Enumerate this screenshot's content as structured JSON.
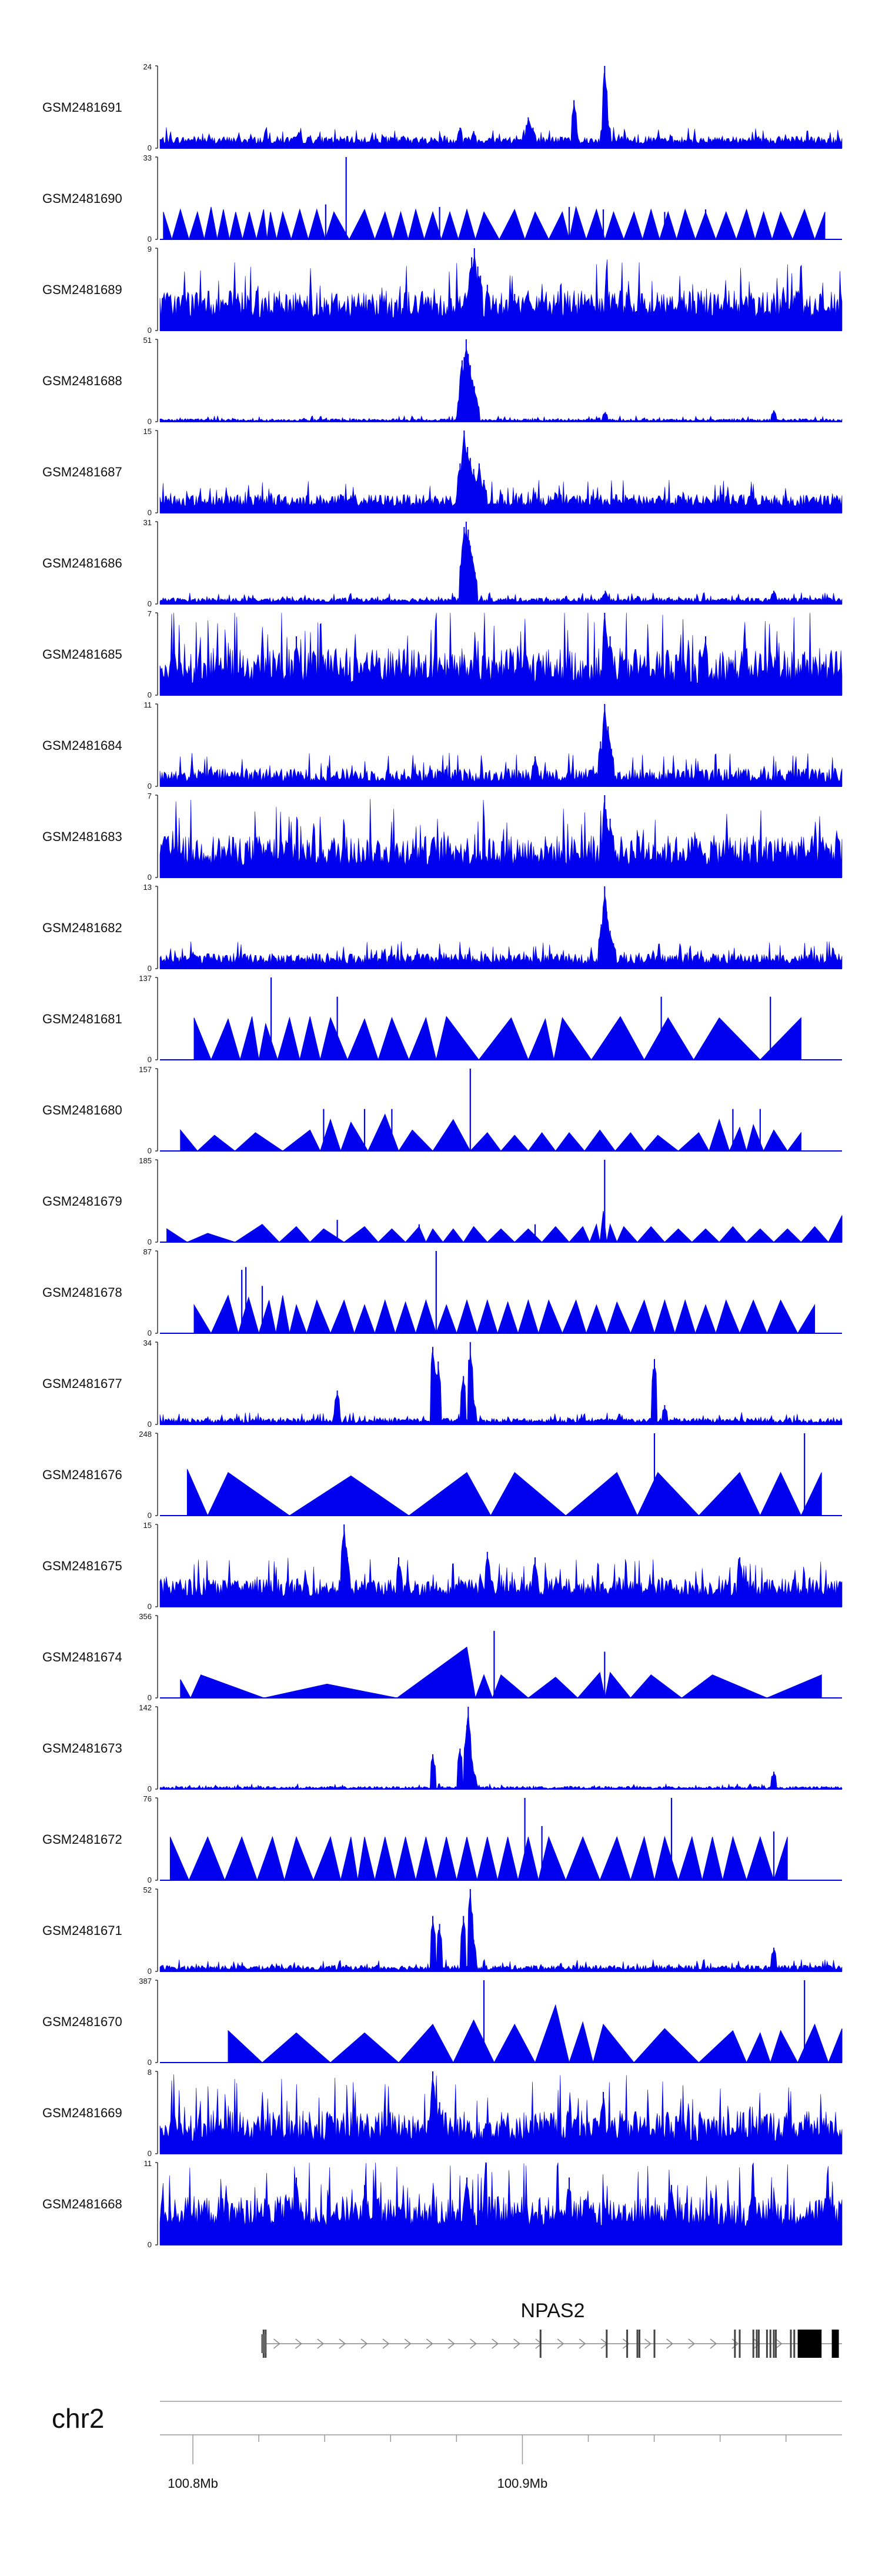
{
  "chart_data": {
    "type": "area",
    "title": "",
    "tracks": [
      {
        "name": "GSM2481691",
        "ymax": 24,
        "style": "noise",
        "base": 1.3,
        "noise": 2.2,
        "peaks": [
          [
            0.44,
            6
          ],
          [
            0.46,
            5
          ],
          [
            0.54,
            9
          ],
          [
            0.547,
            6
          ],
          [
            0.607,
            14
          ],
          [
            0.65,
            7
          ],
          [
            0.652,
            24
          ],
          [
            0.657,
            8
          ]
        ]
      },
      {
        "name": "GSM2481690",
        "ymax": 33,
        "style": "tri",
        "spikes": [
          [
            0.243,
            14
          ],
          [
            0.273,
            33
          ],
          [
            0.41,
            13
          ],
          [
            0.6,
            13
          ],
          [
            0.65,
            12
          ],
          [
            0.74,
            11
          ],
          [
            0.8,
            12
          ]
        ],
        "verts": [
          0.005,
          0.03,
          0.055,
          0.075,
          0.093,
          0.111,
          0.131,
          0.152,
          0.162,
          0.18,
          0.205,
          0.23,
          0.255,
          0.3,
          0.33,
          0.353,
          0.375,
          0.4,
          0.425,
          0.45,
          0.475,
          0.52,
          0.55,
          0.59,
          0.61,
          0.64,
          0.665,
          0.695,
          0.72,
          0.745,
          0.77,
          0.8,
          0.83,
          0.86,
          0.885,
          0.91,
          0.945,
          0.975
        ],
        "heights": [
          11,
          12,
          11,
          13,
          12,
          11,
          11,
          12,
          11,
          11,
          12,
          12,
          11,
          12,
          11,
          11,
          12,
          11,
          11,
          12,
          11,
          12,
          11,
          11,
          13,
          12,
          11,
          11,
          12,
          11,
          12,
          11,
          11,
          12,
          11,
          11,
          12,
          11
        ]
      },
      {
        "name": "GSM2481689",
        "ymax": 9,
        "style": "noise",
        "base": 1.4,
        "noise": 3,
        "peaks": [
          [
            0.455,
            6
          ],
          [
            0.457,
            8
          ],
          [
            0.461,
            9
          ],
          [
            0.466,
            7
          ],
          [
            0.47,
            6
          ],
          [
            0.48,
            5
          ],
          [
            0.52,
            4
          ],
          [
            0.56,
            4
          ]
        ]
      },
      {
        "name": "GSM2481688",
        "ymax": 51,
        "style": "noise",
        "base": 0.4,
        "noise": 1.5,
        "peaks": [
          [
            0.44,
            18
          ],
          [
            0.443,
            38
          ],
          [
            0.446,
            40
          ],
          [
            0.449,
            51
          ],
          [
            0.452,
            42
          ],
          [
            0.455,
            35
          ],
          [
            0.458,
            26
          ],
          [
            0.461,
            22
          ],
          [
            0.464,
            14
          ],
          [
            0.653,
            6
          ],
          [
            0.9,
            7
          ]
        ]
      },
      {
        "name": "GSM2481687",
        "ymax": 15,
        "style": "noise",
        "base": 1.2,
        "noise": 2.2,
        "peaks": [
          [
            0.44,
            9
          ],
          [
            0.446,
            15
          ],
          [
            0.451,
            12
          ],
          [
            0.455,
            10
          ],
          [
            0.46,
            8
          ],
          [
            0.468,
            9
          ],
          [
            0.475,
            6
          ]
        ]
      },
      {
        "name": "GSM2481686",
        "ymax": 31,
        "style": "noise",
        "base": 0.8,
        "noise": 1.6,
        "peaks": [
          [
            0.443,
            20
          ],
          [
            0.446,
            29
          ],
          [
            0.449,
            31
          ],
          [
            0.452,
            28
          ],
          [
            0.455,
            22
          ],
          [
            0.458,
            18
          ],
          [
            0.462,
            12
          ],
          [
            0.653,
            5
          ],
          [
            0.7,
            3
          ],
          [
            0.9,
            5
          ]
        ]
      },
      {
        "name": "GSM2481685",
        "ymax": 7,
        "style": "noise",
        "base": 1,
        "noise": 3,
        "peaks": [
          [
            0.652,
            7
          ],
          [
            0.66,
            5
          ],
          [
            0.2,
            5
          ],
          [
            0.8,
            5
          ]
        ]
      },
      {
        "name": "GSM2481684",
        "ymax": 11,
        "style": "noise",
        "base": 0.6,
        "noise": 1.8,
        "peaks": [
          [
            0.55,
            4
          ],
          [
            0.646,
            6
          ],
          [
            0.652,
            11
          ],
          [
            0.657,
            8
          ],
          [
            0.662,
            5
          ]
        ]
      },
      {
        "name": "GSM2481683",
        "ymax": 7,
        "style": "noise",
        "base": 1,
        "noise": 2.6,
        "peaks": [
          [
            0.652,
            7
          ],
          [
            0.655,
            5
          ],
          [
            0.66,
            5
          ]
        ]
      },
      {
        "name": "GSM2481682",
        "ymax": 13,
        "style": "noise",
        "base": 0.8,
        "noise": 1.6,
        "peaks": [
          [
            0.647,
            7
          ],
          [
            0.652,
            13
          ],
          [
            0.655,
            9
          ],
          [
            0.66,
            6
          ],
          [
            0.665,
            4
          ]
        ]
      },
      {
        "name": "GSM2481681",
        "ymax": 137,
        "style": "tri",
        "spikes": [
          [
            0.163,
            137
          ],
          [
            0.26,
            105
          ],
          [
            0.735,
            105
          ],
          [
            0.895,
            105
          ]
        ],
        "verts": [
          0.05,
          0.1,
          0.135,
          0.155,
          0.19,
          0.22,
          0.25,
          0.3,
          0.34,
          0.39,
          0.42,
          0.515,
          0.565,
          0.59,
          0.675,
          0.745,
          0.82,
          0.94
        ],
        "heights": [
          70,
          68,
          72,
          60,
          70,
          72,
          70,
          68,
          70,
          70,
          72,
          70,
          68,
          70,
          72,
          70,
          70,
          70
        ]
      },
      {
        "name": "GSM2481680",
        "ymax": 157,
        "style": "tri",
        "spikes": [
          [
            0.455,
            157
          ],
          [
            0.24,
            80
          ],
          [
            0.3,
            80
          ],
          [
            0.34,
            80
          ],
          [
            0.84,
            80
          ],
          [
            0.88,
            80
          ]
        ],
        "verts": [
          0.03,
          0.08,
          0.14,
          0.22,
          0.25,
          0.28,
          0.33,
          0.37,
          0.43,
          0.48,
          0.52,
          0.56,
          0.6,
          0.645,
          0.69,
          0.73,
          0.79,
          0.82,
          0.85,
          0.87,
          0.9,
          0.94
        ],
        "heights": [
          40,
          30,
          35,
          40,
          60,
          55,
          70,
          40,
          60,
          35,
          30,
          35,
          35,
          40,
          35,
          30,
          35,
          60,
          45,
          50,
          40,
          35
        ]
      },
      {
        "name": "GSM2481679",
        "ymax": 185,
        "style": "tri",
        "spikes": [
          [
            0.652,
            185
          ],
          [
            0.26,
            50
          ],
          [
            0.38,
            40
          ],
          [
            0.55,
            40
          ]
        ],
        "verts": [
          0.01,
          0.07,
          0.15,
          0.2,
          0.24,
          0.3,
          0.34,
          0.38,
          0.4,
          0.43,
          0.46,
          0.5,
          0.54,
          0.58,
          0.62,
          0.64,
          0.65,
          0.66,
          0.68,
          0.72,
          0.76,
          0.8,
          0.84,
          0.88,
          0.92,
          0.96,
          1.0
        ],
        "heights": [
          30,
          20,
          40,
          35,
          30,
          35,
          30,
          35,
          30,
          30,
          35,
          30,
          30,
          35,
          35,
          40,
          70,
          40,
          35,
          35,
          30,
          30,
          35,
          30,
          30,
          35,
          60
        ]
      },
      {
        "name": "GSM2481678",
        "ymax": 87,
        "style": "tri",
        "spikes": [
          [
            0.12,
            67
          ],
          [
            0.126,
            70
          ],
          [
            0.15,
            50
          ],
          [
            0.405,
            87
          ]
        ],
        "verts": [
          0.05,
          0.1,
          0.13,
          0.16,
          0.18,
          0.2,
          0.23,
          0.27,
          0.3,
          0.33,
          0.36,
          0.39,
          0.42,
          0.45,
          0.48,
          0.51,
          0.54,
          0.57,
          0.61,
          0.64,
          0.67,
          0.71,
          0.74,
          0.77,
          0.8,
          0.83,
          0.87,
          0.91,
          0.96
        ],
        "heights": [
          30,
          40,
          38,
          35,
          40,
          30,
          35,
          35,
          30,
          35,
          33,
          35,
          30,
          35,
          35,
          33,
          35,
          35,
          35,
          30,
          33,
          35,
          35,
          35,
          30,
          35,
          35,
          35,
          30
        ]
      },
      {
        "name": "GSM2481677",
        "ymax": 34,
        "style": "noise",
        "base": 0.7,
        "noise": 2,
        "peaks": [
          [
            0.26,
            14
          ],
          [
            0.4,
            32
          ],
          [
            0.408,
            26
          ],
          [
            0.445,
            20
          ],
          [
            0.455,
            34
          ],
          [
            0.46,
            10
          ],
          [
            0.725,
            27
          ],
          [
            0.74,
            8
          ]
        ]
      },
      {
        "name": "GSM2481676",
        "ymax": 248,
        "style": "tri",
        "spikes": [
          [
            0.725,
            248
          ],
          [
            0.945,
            248
          ]
        ],
        "verts": [
          0.04,
          0.1,
          0.28,
          0.45,
          0.52,
          0.67,
          0.73,
          0.85,
          0.91,
          0.97
        ],
        "heights": [
          140,
          130,
          120,
          130,
          130,
          130,
          130,
          130,
          130,
          130
        ]
      },
      {
        "name": "GSM2481675",
        "ymax": 15,
        "style": "noise",
        "base": 2,
        "noise": 3.2,
        "peaks": [
          [
            0.27,
            15
          ],
          [
            0.275,
            9
          ],
          [
            0.35,
            9
          ],
          [
            0.48,
            10
          ],
          [
            0.55,
            9
          ],
          [
            0.85,
            9
          ]
        ]
      },
      {
        "name": "GSM2481674",
        "ymax": 356,
        "style": "tri",
        "spikes": [
          [
            0.49,
            290
          ],
          [
            0.652,
            200
          ]
        ],
        "verts": [
          0.03,
          0.06,
          0.245,
          0.45,
          0.475,
          0.5,
          0.58,
          0.645,
          0.66,
          0.72,
          0.81,
          0.97
        ],
        "heights": [
          80,
          100,
          60,
          220,
          100,
          100,
          90,
          110,
          110,
          100,
          100,
          100
        ]
      },
      {
        "name": "GSM2481673",
        "ymax": 142,
        "style": "noise",
        "base": 0.8,
        "noise": 4,
        "peaks": [
          [
            0.4,
            60
          ],
          [
            0.44,
            70
          ],
          [
            0.45,
            110
          ],
          [
            0.452,
            142
          ],
          [
            0.456,
            60
          ],
          [
            0.46,
            30
          ],
          [
            0.9,
            30
          ]
        ]
      },
      {
        "name": "GSM2481672",
        "ymax": 76,
        "style": "tri",
        "spikes": [
          [
            0.535,
            76
          ],
          [
            0.75,
            76
          ],
          [
            0.56,
            50
          ],
          [
            0.9,
            45
          ]
        ],
        "verts": [
          0.015,
          0.07,
          0.12,
          0.165,
          0.2,
          0.25,
          0.28,
          0.3,
          0.33,
          0.36,
          0.39,
          0.42,
          0.45,
          0.48,
          0.51,
          0.54,
          0.57,
          0.62,
          0.67,
          0.71,
          0.74,
          0.78,
          0.81,
          0.84,
          0.88,
          0.92
        ],
        "heights": [
          40,
          40,
          40,
          40,
          40,
          40,
          40,
          40,
          40,
          40,
          40,
          40,
          40,
          40,
          40,
          40,
          40,
          40,
          40,
          40,
          40,
          40,
          40,
          40,
          40,
          40
        ]
      },
      {
        "name": "GSM2481671",
        "ymax": 52,
        "style": "noise",
        "base": 1,
        "noise": 3,
        "peaks": [
          [
            0.4,
            35
          ],
          [
            0.41,
            30
          ],
          [
            0.445,
            35
          ],
          [
            0.455,
            52
          ],
          [
            0.46,
            20
          ],
          [
            0.9,
            15
          ]
        ]
      },
      {
        "name": "GSM2481670",
        "ymax": 387,
        "style": "tri",
        "spikes": [
          [
            0.475,
            387
          ],
          [
            0.945,
            387
          ]
        ],
        "verts": [
          0.1,
          0.2,
          0.3,
          0.4,
          0.46,
          0.52,
          0.58,
          0.62,
          0.65,
          0.74,
          0.84,
          0.88,
          0.91,
          0.96,
          1.0
        ],
        "heights": [
          150,
          140,
          140,
          180,
          200,
          180,
          270,
          190,
          180,
          160,
          150,
          140,
          150,
          180,
          160
        ]
      },
      {
        "name": "GSM2481669",
        "ymax": 8,
        "style": "noise",
        "base": 1.2,
        "noise": 3,
        "peaks": [
          [
            0.4,
            8
          ],
          [
            0.41,
            5
          ],
          [
            0.65,
            6
          ]
        ]
      },
      {
        "name": "GSM2481668",
        "ymax": 11,
        "style": "noise",
        "base": 2.5,
        "noise": 4,
        "peaks": [
          [
            0.2,
            9
          ],
          [
            0.3,
            8
          ],
          [
            0.45,
            9
          ],
          [
            0.6,
            9
          ],
          [
            0.75,
            8
          ]
        ]
      }
    ],
    "gene": {
      "name": "NPAS2",
      "start": 0.152,
      "end": 1.0,
      "exons": [
        0.152,
        0.155,
        0.558,
        0.655,
        0.685,
        0.7,
        0.703,
        0.725,
        0.843,
        0.85,
        0.87,
        0.875,
        0.878,
        0.89,
        0.895,
        0.9,
        0.903,
        0.925,
        0.93
      ],
      "utr_block": [
        0.935,
        0.97
      ]
    },
    "chromosome": "chr2",
    "genomic_range_mb": [
      100.79,
      100.997
    ],
    "axis_ticks": [
      {
        "pos": 100.8,
        "label": "100.8Mb"
      },
      {
        "pos": 100.82,
        "label": ""
      },
      {
        "pos": 100.84,
        "label": ""
      },
      {
        "pos": 100.86,
        "label": ""
      },
      {
        "pos": 100.88,
        "label": ""
      },
      {
        "pos": 100.9,
        "label": "100.9Mb"
      },
      {
        "pos": 100.92,
        "label": ""
      },
      {
        "pos": 100.94,
        "label": ""
      },
      {
        "pos": 100.96,
        "label": ""
      },
      {
        "pos": 100.98,
        "label": ""
      }
    ],
    "fill_color": "#0000ee"
  }
}
